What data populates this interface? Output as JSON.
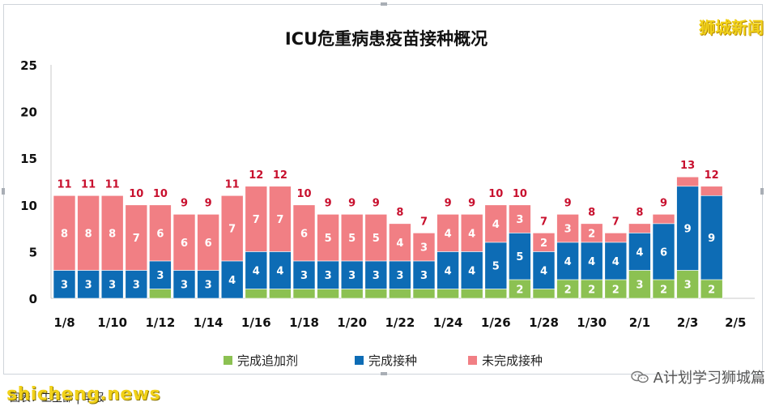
{
  "watermark_top": "狮城新闻",
  "watermark_bottom": "shicheng.news",
  "source_caption": "图表：卫生部 | 早报",
  "wechat_label": "A计划学习狮城篇",
  "colors": {
    "booster": "#8cc152",
    "complete": "#0d6cb5",
    "incomplete": "#f17f84",
    "total_label": "#c8102e"
  },
  "chart_data": {
    "type": "bar",
    "stacked": true,
    "title": "ICU危重病患疫苗接种概况",
    "ylim": [
      0,
      25
    ],
    "yticks": [
      0,
      5,
      10,
      15,
      20,
      25
    ],
    "grid": false,
    "legend_position": "bottom",
    "x_tick_labels": [
      "1/8",
      "1/10",
      "1/12",
      "1/14",
      "1/16",
      "1/18",
      "1/20",
      "1/22",
      "1/24",
      "1/26",
      "1/28",
      "1/30",
      "2/1",
      "2/3",
      "2/5"
    ],
    "categories": [
      "1/8",
      "1/9",
      "1/10",
      "1/11",
      "1/12",
      "1/13",
      "1/14",
      "1/15",
      "1/16",
      "1/17",
      "1/18",
      "1/19",
      "1/20",
      "1/21",
      "1/22",
      "1/23",
      "1/24",
      "1/25",
      "1/26",
      "1/27",
      "1/28",
      "1/29",
      "1/30",
      "1/31",
      "2/1",
      "2/2",
      "2/3",
      "2/4"
    ],
    "series": [
      {
        "name": "完成追加剂",
        "values": [
          0,
          0,
          0,
          0,
          1,
          0,
          0,
          0,
          1,
          1,
          1,
          1,
          1,
          1,
          1,
          1,
          1,
          1,
          1,
          2,
          1,
          2,
          2,
          2,
          3,
          2,
          3,
          2
        ]
      },
      {
        "name": "完成接种",
        "values": [
          3,
          3,
          3,
          3,
          3,
          3,
          3,
          4,
          4,
          4,
          3,
          3,
          3,
          3,
          3,
          3,
          4,
          4,
          5,
          5,
          4,
          4,
          4,
          4,
          4,
          6,
          9,
          9
        ]
      },
      {
        "name": "未完成接种",
        "values": [
          8,
          8,
          8,
          7,
          6,
          6,
          6,
          7,
          7,
          7,
          6,
          5,
          5,
          5,
          4,
          3,
          4,
          4,
          4,
          3,
          2,
          3,
          2,
          1,
          1,
          1,
          1,
          1
        ]
      }
    ],
    "segment_labels": {
      "完成追加剂": [
        "",
        "",
        "",
        "",
        "",
        "",
        "",
        "",
        "",
        "",
        "",
        "",
        "",
        "",
        "",
        "",
        "",
        "",
        "",
        "2",
        "",
        "2",
        "2",
        "2",
        "3",
        "2",
        "3",
        "2"
      ],
      "完成接种": [
        "3",
        "3",
        "3",
        "3",
        "3",
        "3",
        "3",
        "4",
        "4",
        "4",
        "3",
        "3",
        "3",
        "3",
        "3",
        "3",
        "4",
        "4",
        "5",
        "5",
        "4",
        "4",
        "4",
        "4",
        "4",
        "6",
        "9",
        "9"
      ],
      "未完成接种": [
        "8",
        "8",
        "8",
        "7",
        "6",
        "6",
        "6",
        "7",
        "7",
        "7",
        "6",
        "5",
        "5",
        "5",
        "4",
        "3",
        "4",
        "4",
        "4",
        "3",
        "2",
        "3",
        "2",
        "",
        "",
        "",
        "",
        ""
      ]
    },
    "totals": [
      11,
      11,
      11,
      10,
      10,
      9,
      9,
      11,
      12,
      12,
      10,
      9,
      9,
      9,
      8,
      7,
      9,
      9,
      10,
      10,
      7,
      9,
      8,
      7,
      8,
      9,
      13,
      12
    ]
  }
}
